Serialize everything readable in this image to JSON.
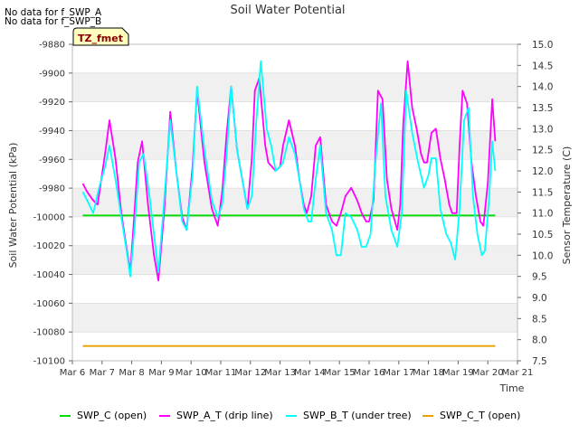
{
  "notes": [
    "No data for f_SWP_A",
    "No data for f_SWP_B"
  ],
  "chart_data": {
    "type": "line",
    "title": "Soil Water Potential",
    "xlabel": "Time",
    "ylabel": "Soil Water Potential (kPa)",
    "y2label": "Sensor Temperature (C)",
    "badge": "TZ_fmet",
    "grid": "horizontal bands",
    "legend_position": "bottom",
    "xlim": [
      6,
      21
    ],
    "x_ticks": [
      {
        "v": 6,
        "label": "Mar 6"
      },
      {
        "v": 7,
        "label": "Mar 7"
      },
      {
        "v": 8,
        "label": "Mar 8"
      },
      {
        "v": 9,
        "label": "Mar 9"
      },
      {
        "v": 10,
        "label": "Mar 10"
      },
      {
        "v": 11,
        "label": "Mar 11"
      },
      {
        "v": 12,
        "label": "Mar 12"
      },
      {
        "v": 13,
        "label": "Mar 13"
      },
      {
        "v": 14,
        "label": "Mar 14"
      },
      {
        "v": 15,
        "label": "Mar 15"
      },
      {
        "v": 16,
        "label": "Mar 16"
      },
      {
        "v": 17,
        "label": "Mar 17"
      },
      {
        "v": 18,
        "label": "Mar 18"
      },
      {
        "v": 19,
        "label": "Mar 19"
      },
      {
        "v": 20,
        "label": "Mar 20"
      },
      {
        "v": 21,
        "label": "Mar 21"
      }
    ],
    "ylim": [
      -10100,
      -9880
    ],
    "y_ticks": [
      -9880,
      -9900,
      -9920,
      -9940,
      -9960,
      -9980,
      -10000,
      -10020,
      -10040,
      -10060,
      -10080,
      -10100
    ],
    "y2lim": [
      7.5,
      15.0
    ],
    "y2_ticks": [
      "7.5",
      "8.0",
      "8.5",
      "9.0",
      "9.5",
      "10.0",
      "10.5",
      "11.0",
      "11.5",
      "12.0",
      "12.5",
      "13.0",
      "13.5",
      "14.0",
      "14.5",
      "15.0"
    ],
    "series": [
      {
        "name": "SWP_C (open)",
        "color": "#00dd00",
        "axis": "left",
        "x": [
          6.35,
          20.25
        ],
        "y": [
          -9999,
          -9999
        ]
      },
      {
        "name": "SWP_A_T (drip line)",
        "color": "#ff00ff",
        "axis": "right",
        "x": [
          6.35,
          6.5,
          6.7,
          6.85,
          7.1,
          7.25,
          7.45,
          7.65,
          7.8,
          7.95,
          8.1,
          8.2,
          8.35,
          8.55,
          8.75,
          8.9,
          9.1,
          9.3,
          9.5,
          9.7,
          9.85,
          10.05,
          10.2,
          10.45,
          10.7,
          10.9,
          11.05,
          11.2,
          11.35,
          11.55,
          11.75,
          11.9,
          12.05,
          12.15,
          12.3,
          12.5,
          12.6,
          12.85,
          13.0,
          13.1,
          13.3,
          13.5,
          13.65,
          13.8,
          13.9,
          14.05,
          14.2,
          14.35,
          14.55,
          14.75,
          14.9,
          15.05,
          15.2,
          15.4,
          15.6,
          15.75,
          15.9,
          16.0,
          16.15,
          16.3,
          16.45,
          16.6,
          16.75,
          16.95,
          17.05,
          17.15,
          17.3,
          17.45,
          17.6,
          17.75,
          17.85,
          17.95,
          18.1,
          18.25,
          18.4,
          18.55,
          18.7,
          18.8,
          18.95,
          19.05,
          19.15,
          19.3,
          19.45,
          19.6,
          19.75,
          19.85,
          20.0,
          20.15,
          20.25
        ],
        "y": [
          11.7,
          11.5,
          11.3,
          11.2,
          12.4,
          13.2,
          12.3,
          11.0,
          10.3,
          9.6,
          11.1,
          12.2,
          12.7,
          11.2,
          10.0,
          9.4,
          11.1,
          13.4,
          12.0,
          10.9,
          10.6,
          12.1,
          13.9,
          12.2,
          11.1,
          10.7,
          11.5,
          12.9,
          14.0,
          12.5,
          11.7,
          11.1,
          12.3,
          13.9,
          14.2,
          12.6,
          12.2,
          12.0,
          12.1,
          12.6,
          13.2,
          12.6,
          11.8,
          11.2,
          11.0,
          11.4,
          12.6,
          12.8,
          11.2,
          10.8,
          10.7,
          11.0,
          11.4,
          11.6,
          11.3,
          11.0,
          10.8,
          10.8,
          11.3,
          13.9,
          13.7,
          11.8,
          11.1,
          10.6,
          11.2,
          13.1,
          14.6,
          13.5,
          13.0,
          12.4,
          12.2,
          12.2,
          12.9,
          13.0,
          12.3,
          11.8,
          11.2,
          11.0,
          11.0,
          12.6,
          13.9,
          13.6,
          12.2,
          11.4,
          10.8,
          10.7,
          11.7,
          13.7,
          12.7
        ]
      },
      {
        "name": "SWP_B_T (under tree)",
        "color": "#00ffff",
        "axis": "right",
        "x": [
          6.35,
          6.5,
          6.7,
          6.9,
          7.1,
          7.25,
          7.45,
          7.65,
          7.85,
          7.95,
          8.1,
          8.25,
          8.4,
          8.6,
          8.8,
          8.9,
          9.05,
          9.3,
          9.5,
          9.7,
          9.85,
          10.05,
          10.2,
          10.45,
          10.7,
          10.9,
          11.05,
          11.2,
          11.35,
          11.55,
          11.75,
          11.9,
          12.05,
          12.2,
          12.35,
          12.55,
          12.7,
          12.85,
          13.0,
          13.1,
          13.3,
          13.5,
          13.65,
          13.8,
          13.95,
          14.05,
          14.2,
          14.35,
          14.55,
          14.75,
          14.9,
          15.05,
          15.2,
          15.4,
          15.6,
          15.75,
          15.9,
          16.05,
          16.2,
          16.4,
          16.55,
          16.75,
          16.95,
          17.1,
          17.25,
          17.45,
          17.65,
          17.85,
          18.0,
          18.1,
          18.25,
          18.4,
          18.6,
          18.75,
          18.9,
          19.05,
          19.2,
          19.35,
          19.5,
          19.65,
          19.8,
          19.9,
          20.05,
          20.15,
          20.25
        ],
        "y": [
          11.5,
          11.3,
          11.0,
          11.6,
          12.1,
          12.6,
          11.8,
          10.9,
          10.0,
          9.5,
          10.7,
          12.2,
          12.4,
          11.4,
          10.2,
          9.6,
          10.9,
          13.2,
          12.0,
          10.8,
          10.6,
          11.9,
          14.0,
          12.5,
          11.3,
          10.9,
          11.2,
          12.4,
          14.0,
          12.5,
          11.7,
          11.1,
          11.4,
          13.2,
          14.6,
          13.0,
          12.6,
          12.0,
          12.1,
          12.2,
          12.8,
          12.4,
          11.8,
          11.1,
          10.8,
          10.8,
          11.8,
          12.6,
          11.0,
          10.6,
          10.0,
          10.0,
          11.0,
          10.9,
          10.6,
          10.2,
          10.2,
          10.5,
          12.1,
          13.6,
          11.4,
          10.6,
          10.2,
          11.0,
          13.9,
          12.9,
          12.2,
          11.6,
          11.9,
          12.3,
          12.3,
          11.1,
          10.5,
          10.3,
          9.9,
          11.1,
          13.2,
          13.5,
          11.4,
          10.5,
          10.0,
          10.1,
          11.4,
          12.7,
          12.0
        ]
      },
      {
        "name": "SWP_C_T (open)",
        "color": "#e8a000",
        "axis": "right",
        "x": [
          6.35,
          20.25
        ],
        "y": [
          7.85,
          7.85
        ]
      }
    ]
  }
}
